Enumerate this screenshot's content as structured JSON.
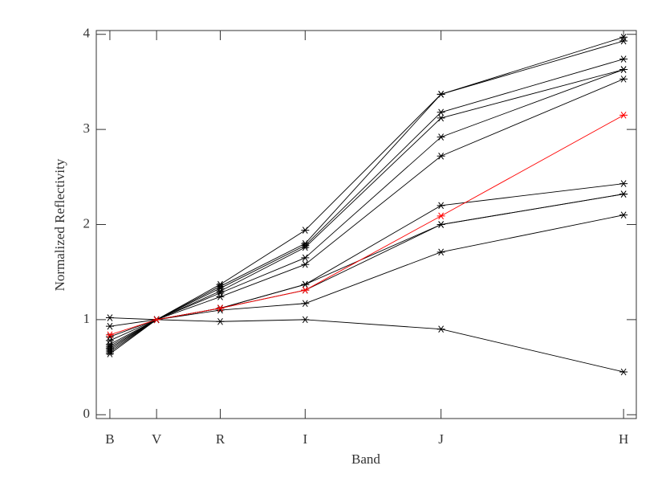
{
  "chart_data": {
    "type": "line",
    "x_label": "Band",
    "y_label": "Normalized Reflectivity",
    "x": [
      0.44,
      0.55,
      0.7,
      0.9,
      1.22,
      1.65
    ],
    "xlim": [
      0.408,
      1.68
    ],
    "xticks": [
      {
        "value": 0.44,
        "label": "B"
      },
      {
        "value": 0.55,
        "label": "V"
      },
      {
        "value": 0.7,
        "label": "R"
      },
      {
        "value": 0.9,
        "label": "I"
      },
      {
        "value": 1.22,
        "label": "J"
      },
      {
        "value": 1.65,
        "label": "H"
      }
    ],
    "ylim": [
      -0.04,
      4.04
    ],
    "yticks": [
      0,
      1,
      2,
      3,
      4
    ],
    "series": [
      {
        "color": "#000000",
        "values": [
          0.64,
          1,
          1.37,
          1.94,
          3.37,
          3.93
        ]
      },
      {
        "color": "#000000",
        "values": [
          0.66,
          1,
          1.35,
          1.8,
          3.37,
          3.97
        ]
      },
      {
        "color": "#000000",
        "values": [
          0.7,
          1,
          1.33,
          1.78,
          3.18,
          3.74
        ]
      },
      {
        "color": "#000000",
        "values": [
          0.68,
          1,
          1.3,
          1.76,
          3.12,
          3.63
        ]
      },
      {
        "color": "#000000",
        "values": [
          0.72,
          1,
          1.28,
          1.65,
          2.92,
          3.63
        ]
      },
      {
        "color": "#000000",
        "values": [
          0.74,
          1,
          1.24,
          1.58,
          2.72,
          3.53
        ]
      },
      {
        "color": "#000000",
        "values": [
          0.78,
          1,
          1.12,
          1.37,
          2.2,
          2.43
        ]
      },
      {
        "color": "#000000",
        "values": [
          0.7,
          1,
          1.12,
          1.37,
          2.0,
          2.32
        ]
      },
      {
        "color": "#000000",
        "values": [
          0.82,
          1,
          1.12,
          1.31,
          2.0,
          2.32
        ]
      },
      {
        "color": "#000000",
        "values": [
          0.93,
          1,
          1.1,
          1.17,
          1.71,
          2.1
        ]
      },
      {
        "color": "#000000",
        "values": [
          1.02,
          1,
          0.98,
          1.0,
          0.9,
          0.45
        ]
      },
      {
        "color": "#ff0000",
        "values": [
          0.84,
          1,
          1.12,
          1.31,
          2.09,
          3.15
        ]
      }
    ]
  }
}
